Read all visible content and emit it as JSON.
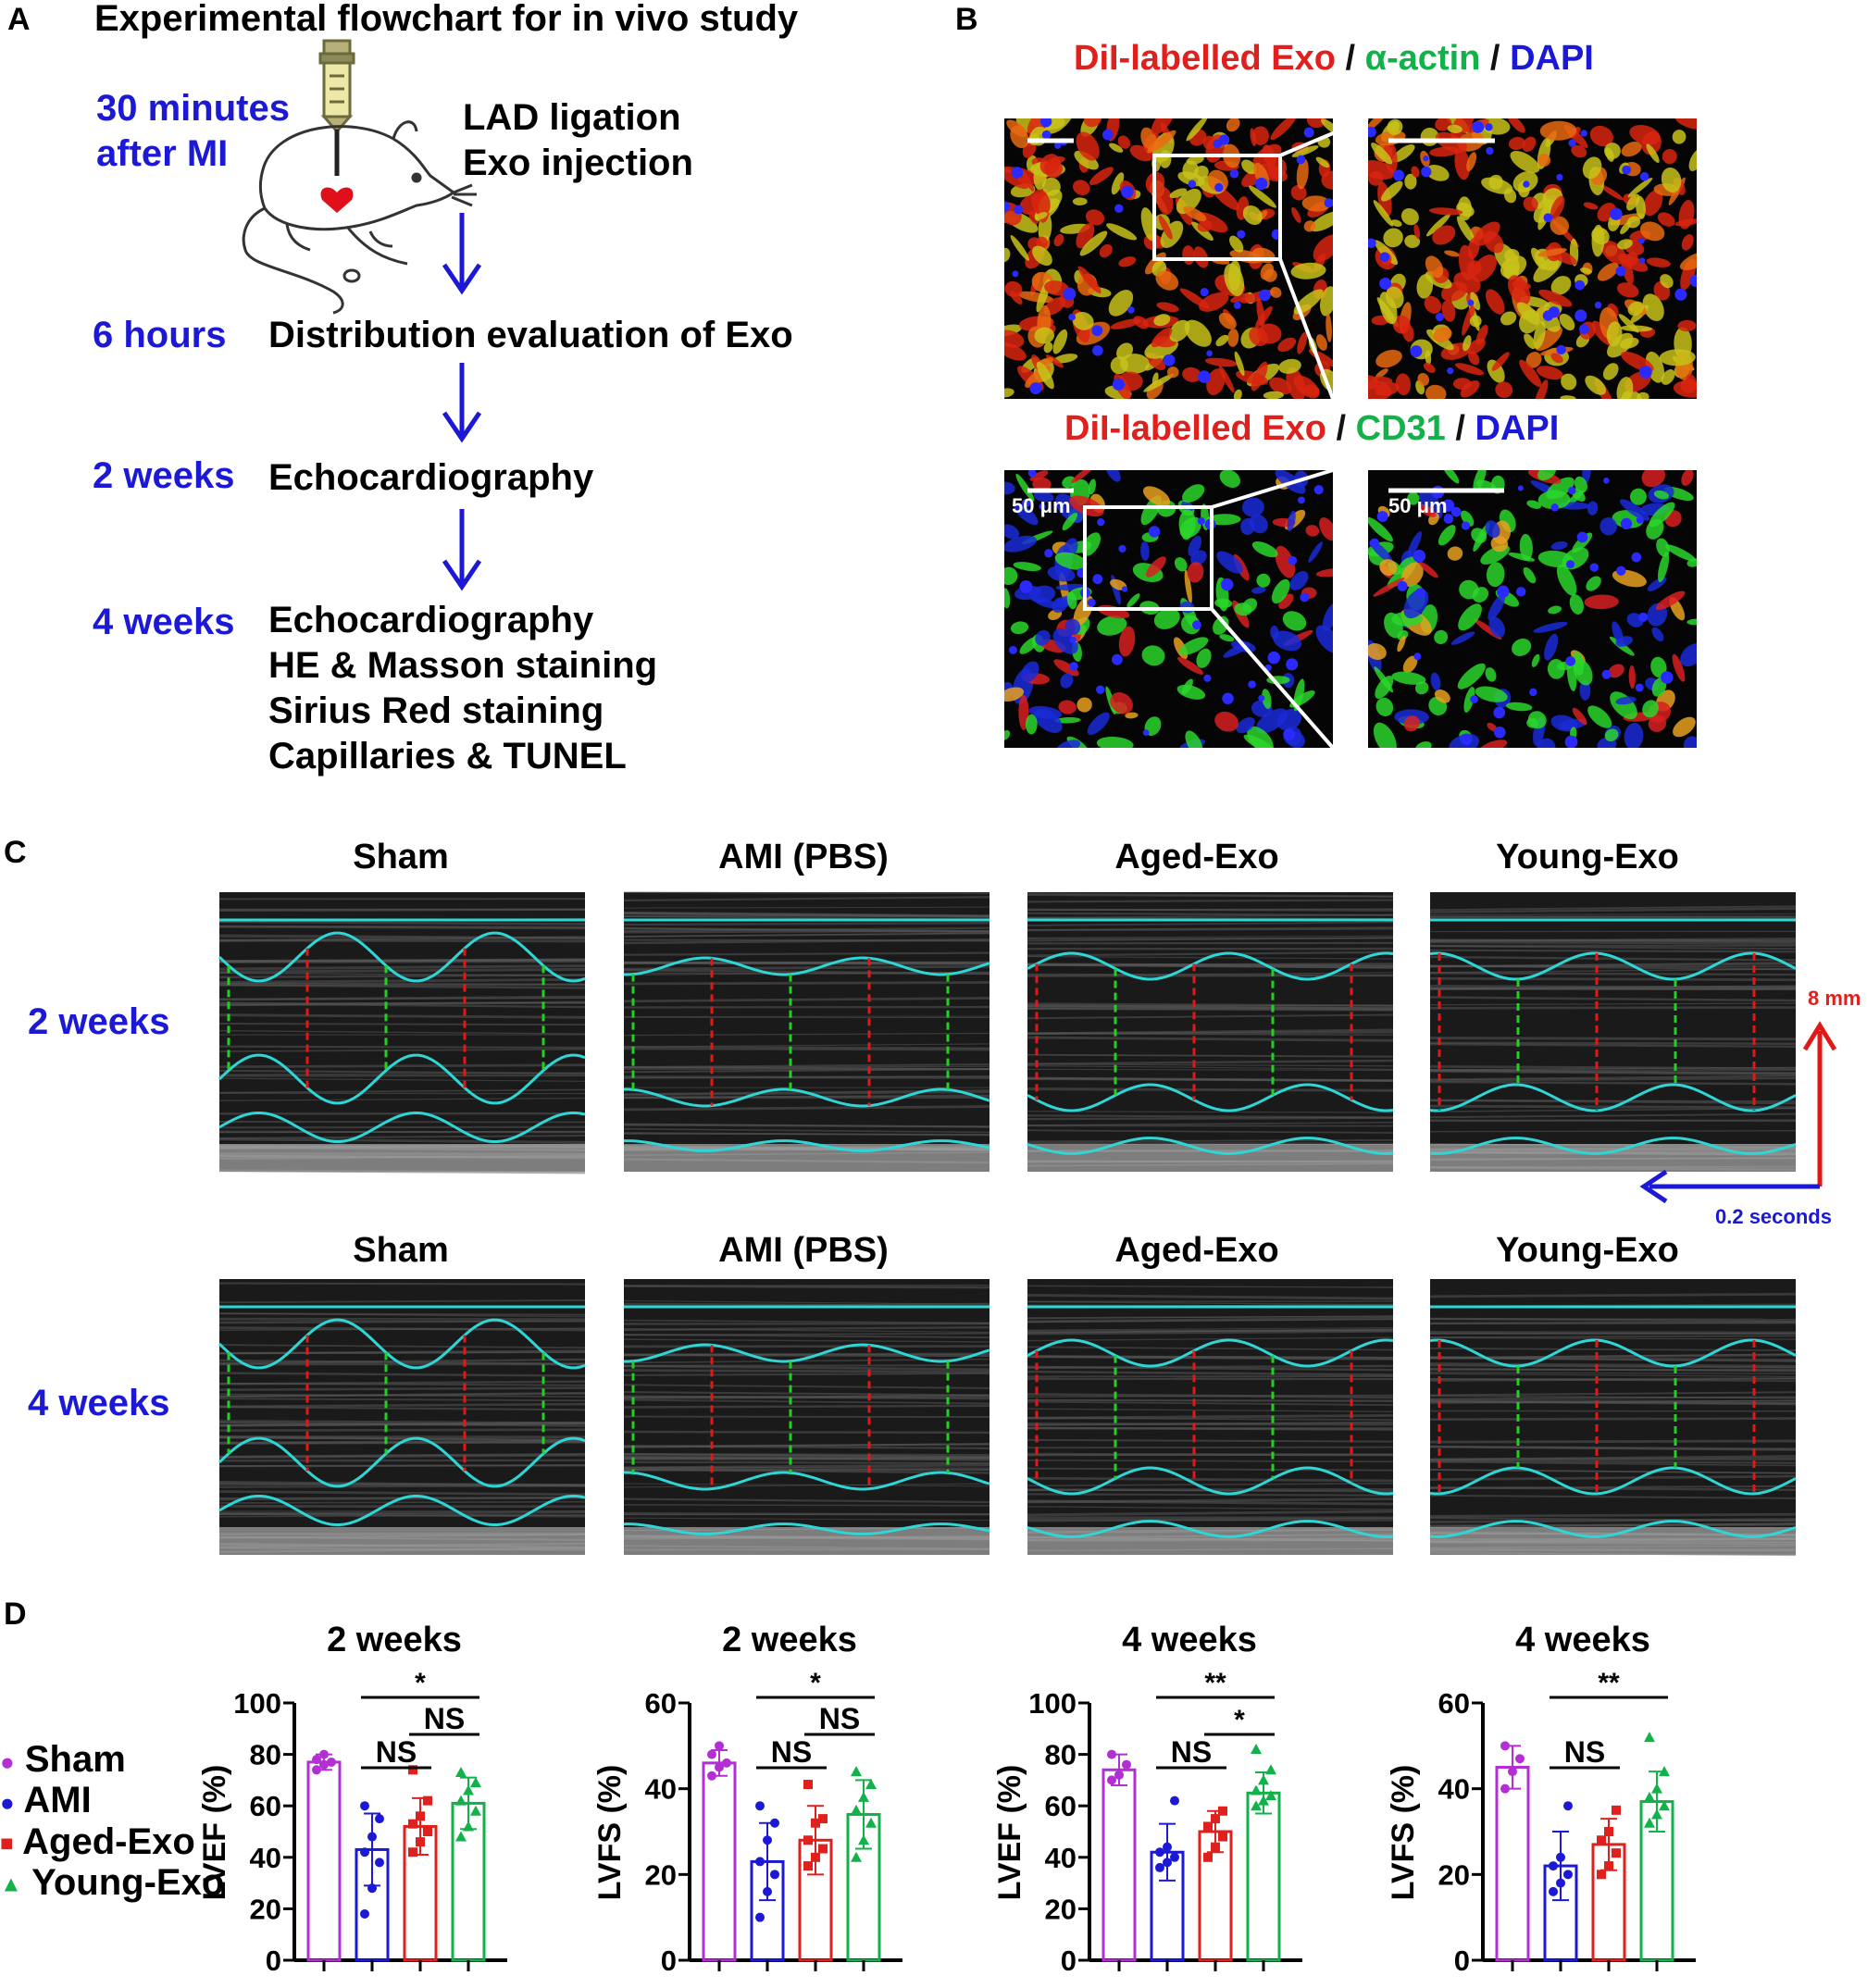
{
  "panel_A": {
    "label": "A",
    "title": "Experimental flowchart for in vivo study",
    "time_30": [
      "30 minutes",
      "after MI"
    ],
    "procedures_30": [
      "LAD ligation",
      "Exo injection"
    ],
    "step_6h": {
      "time": "6 hours",
      "text": [
        "Distribution evaluation of Exo"
      ]
    },
    "step_2w": {
      "time": "2 weeks",
      "text": [
        "Echocardiography"
      ]
    },
    "step_4w": {
      "time": "4 weeks",
      "text": [
        "Echocardiography",
        "HE & Masson staining",
        "Sirius Red staining",
        "Capillaries & TUNEL"
      ]
    },
    "colors": {
      "time": "#1b18d6",
      "arrow": "#1b18d6",
      "heart": "#e0101a"
    }
  },
  "panel_B": {
    "label": "B",
    "row1_legend": [
      {
        "text": "DiI-labelled Exo",
        "color": "#e0201c"
      },
      {
        "text": " / ",
        "color": "#111111"
      },
      {
        "text": "α-actin",
        "color": "#12b14a"
      },
      {
        "text": " / ",
        "color": "#111111"
      },
      {
        "text": "DAPI",
        "color": "#1b18d6"
      }
    ],
    "row2_legend": [
      {
        "text": "DiI-labelled Exo",
        "color": "#e0201c"
      },
      {
        "text": " / ",
        "color": "#111111"
      },
      {
        "text": "CD31",
        "color": "#12b14a"
      },
      {
        "text": " / ",
        "color": "#111111"
      },
      {
        "text": "DAPI",
        "color": "#1b18d6"
      }
    ],
    "scale_label_left": "50 μm",
    "scale_label_right": "50 μm"
  },
  "panel_C": {
    "label": "C",
    "groups": [
      "Sham",
      "AMI (PBS)",
      "Aged-Exo",
      "Young-Exo"
    ],
    "rows": [
      "2 weeks",
      "4 weeks"
    ],
    "scale_vertical": "8 mm",
    "scale_horizontal": "0.2 seconds",
    "colors": {
      "trace": "#2fd6d6",
      "diastole": "#e01818",
      "systole": "#22d022",
      "scale_v": "#e01818",
      "scale_h": "#1b18d6"
    }
  },
  "panel_D": {
    "label": "D",
    "legend": [
      {
        "name": "Sham",
        "color": "#b32fd4",
        "marker": "circle"
      },
      {
        "name": "AMI",
        "color": "#1b18d6",
        "marker": "circle"
      },
      {
        "name": "Aged-Exo",
        "color": "#e0201c",
        "marker": "square"
      },
      {
        "name": "Young-Exo",
        "color": "#12b14a",
        "marker": "triangle"
      }
    ]
  },
  "chart_data": [
    {
      "type": "bar",
      "title": "2 weeks",
      "ylabel": "LVEF (%)",
      "ylim": [
        0,
        100
      ],
      "yticks": [
        0,
        20,
        40,
        60,
        80,
        100
      ],
      "categories": [
        "Sham",
        "AMI",
        "Aged-Exo",
        "Young-Exo"
      ],
      "values": [
        77,
        43,
        52,
        61
      ],
      "sd": [
        3,
        14,
        11,
        10
      ],
      "points": [
        [
          74,
          76,
          77,
          78,
          80
        ],
        [
          18,
          28,
          38,
          42,
          48,
          55,
          60
        ],
        [
          42,
          46,
          50,
          53,
          56,
          62,
          74
        ],
        [
          48,
          52,
          58,
          62,
          66,
          69,
          73
        ]
      ],
      "annotations": [
        {
          "text": "*",
          "from": 1,
          "to": 3,
          "level": 1
        },
        {
          "text": "NS",
          "from": 2,
          "to": 3,
          "level": 2
        },
        {
          "text": "NS",
          "from": 1,
          "to": 2,
          "level": 3
        }
      ]
    },
    {
      "type": "bar",
      "title": "2 weeks",
      "ylabel": "LVFS (%)",
      "ylim": [
        0,
        60
      ],
      "yticks": [
        0,
        20,
        40,
        60
      ],
      "categories": [
        "Sham",
        "AMI",
        "Aged-Exo",
        "Young-Exo"
      ],
      "values": [
        46,
        23,
        28,
        34
      ],
      "sd": [
        3,
        9,
        8,
        8
      ],
      "points": [
        [
          43,
          45,
          46,
          48,
          50
        ],
        [
          10,
          16,
          20,
          23,
          28,
          32,
          36
        ],
        [
          22,
          24,
          26,
          28,
          32,
          33,
          41
        ],
        [
          24,
          28,
          32,
          35,
          38,
          41,
          44
        ]
      ],
      "annotations": [
        {
          "text": "*",
          "from": 1,
          "to": 3,
          "level": 1
        },
        {
          "text": "NS",
          "from": 2,
          "to": 3,
          "level": 2
        },
        {
          "text": "NS",
          "from": 1,
          "to": 2,
          "level": 3
        }
      ]
    },
    {
      "type": "bar",
      "title": "4 weeks",
      "ylabel": "LVEF (%)",
      "ylim": [
        0,
        100
      ],
      "yticks": [
        0,
        20,
        40,
        60,
        80,
        100
      ],
      "categories": [
        "Sham",
        "AMI",
        "Aged-Exo",
        "Young-Exo"
      ],
      "values": [
        74,
        42,
        50,
        65
      ],
      "sd": [
        6,
        11,
        8,
        8
      ],
      "points": [
        [
          70,
          72,
          76,
          80
        ],
        [
          36,
          38,
          40,
          42,
          44,
          62
        ],
        [
          40,
          44,
          48,
          52,
          55,
          58
        ],
        [
          60,
          62,
          64,
          66,
          70,
          74,
          82
        ]
      ],
      "annotations": [
        {
          "text": "**",
          "from": 1,
          "to": 3,
          "level": 1
        },
        {
          "text": "*",
          "from": 2,
          "to": 3,
          "level": 2
        },
        {
          "text": "NS",
          "from": 1,
          "to": 2,
          "level": 3
        }
      ]
    },
    {
      "type": "bar",
      "title": "4 weeks",
      "ylabel": "LVFS (%)",
      "ylim": [
        0,
        60
      ],
      "yticks": [
        0,
        20,
        40,
        60
      ],
      "categories": [
        "Sham",
        "AMI",
        "Aged-Exo",
        "Young-Exo"
      ],
      "values": [
        45,
        22,
        27,
        37
      ],
      "sd": [
        5,
        8,
        6,
        7
      ],
      "points": [
        [
          40,
          44,
          47,
          50
        ],
        [
          16,
          18,
          20,
          22,
          24,
          36
        ],
        [
          20,
          22,
          25,
          28,
          30,
          35
        ],
        [
          32,
          34,
          36,
          38,
          40,
          44,
          52
        ]
      ],
      "annotations": [
        {
          "text": "**",
          "from": 1,
          "to": 3,
          "level": 1
        },
        {
          "text": "NS",
          "from": 1,
          "to": 2,
          "level": 3
        }
      ]
    }
  ]
}
